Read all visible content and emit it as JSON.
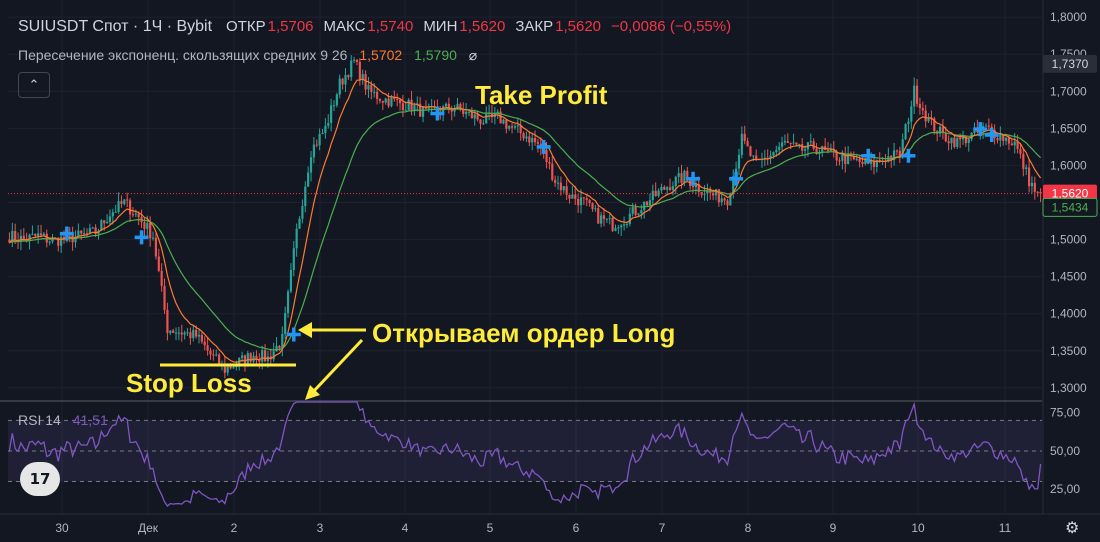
{
  "header": {
    "symbol": "SUIUSDT Спот · 1Ч · Bybit",
    "open_label": "ОТКР",
    "open": "1,5706",
    "high_label": "МАКС",
    "high": "1,5740",
    "low_label": "МИН",
    "low": "1,5620",
    "close_label": "ЗАКР",
    "close": "1,5620",
    "change": "−0,0086 (−0,55%)"
  },
  "indicator": {
    "name": "Пересечение экспоненц. скользящих средних 9 26",
    "ema_fast_value": "1,5702",
    "ema_slow_value": "1,5790",
    "eye_icon": "⌀"
  },
  "collapse_label": "⌃",
  "rsi": {
    "label": "RSI 14",
    "value": "41,51"
  },
  "logo_text": "17",
  "annotations": {
    "take_profit": "Take Profit",
    "open_long": "Открываем ордер Long",
    "stop_loss": "Stop Loss"
  },
  "colors": {
    "background": "#131722",
    "up": "#26a69a",
    "down": "#ef5350",
    "ema_fast": "#ff7a2f",
    "ema_slow": "#4caf50",
    "rsi": "#7e57c2",
    "annotation": "#ffeb3b",
    "cross": "#2196f3"
  },
  "chart_data": [
    {
      "type": "candlestick",
      "price_axis_ticks": [
        "1,8000",
        "1,7500",
        "1,7000",
        "1,6500",
        "1,6000",
        "1,5500",
        "1,5000",
        "1,4500",
        "1,4000",
        "1,3500",
        "1,3000"
      ],
      "price_axis_tick_values": [
        1.8,
        1.75,
        1.7,
        1.65,
        1.6,
        1.55,
        1.5,
        1.45,
        1.4,
        1.35,
        1.3
      ],
      "ylim": [
        1.285,
        1.815
      ],
      "x_axis_ticks": [
        "30",
        "Дек",
        "2",
        "3",
        "4",
        "5",
        "6",
        "7",
        "8",
        "9",
        "10",
        "11"
      ],
      "price_labels": [
        {
          "text": "1,7370",
          "value": 1.737,
          "style": "dark"
        },
        {
          "text": "1,5620",
          "value": 1.562,
          "style": "red"
        },
        {
          "text": "1,5434",
          "value": 1.5434,
          "style": "green"
        }
      ],
      "current_price": 1.562,
      "close_path": [
        [
          0,
          1.505
        ],
        [
          5,
          1.5
        ],
        [
          10,
          1.505
        ],
        [
          15,
          1.498
        ],
        [
          20,
          1.502
        ],
        [
          25,
          1.505
        ],
        [
          30,
          1.51
        ],
        [
          35,
          1.535
        ],
        [
          40,
          1.55
        ],
        [
          45,
          1.53
        ],
        [
          50,
          1.505
        ],
        [
          55,
          1.38
        ],
        [
          60,
          1.375
        ],
        [
          65,
          1.37
        ],
        [
          70,
          1.345
        ],
        [
          75,
          1.325
        ],
        [
          80,
          1.335
        ],
        [
          85,
          1.345
        ],
        [
          90,
          1.34
        ],
        [
          95,
          1.365
        ],
        [
          100,
          1.51
        ],
        [
          105,
          1.62
        ],
        [
          110,
          1.65
        ],
        [
          115,
          1.71
        ],
        [
          120,
          1.74
        ],
        [
          125,
          1.7
        ],
        [
          130,
          1.69
        ],
        [
          135,
          1.685
        ],
        [
          140,
          1.68
        ],
        [
          145,
          1.67
        ],
        [
          150,
          1.675
        ],
        [
          155,
          1.678
        ],
        [
          160,
          1.668
        ],
        [
          165,
          1.66
        ],
        [
          170,
          1.665
        ],
        [
          175,
          1.65
        ],
        [
          180,
          1.64
        ],
        [
          185,
          1.625
        ],
        [
          190,
          1.58
        ],
        [
          195,
          1.56
        ],
        [
          200,
          1.55
        ],
        [
          205,
          1.53
        ],
        [
          210,
          1.52
        ],
        [
          215,
          1.53
        ],
        [
          220,
          1.545
        ],
        [
          225,
          1.56
        ],
        [
          230,
          1.575
        ],
        [
          235,
          1.585
        ],
        [
          240,
          1.57
        ],
        [
          245,
          1.56
        ],
        [
          250,
          1.555
        ],
        [
          255,
          1.635
        ],
        [
          260,
          1.6
        ],
        [
          265,
          1.615
        ],
        [
          270,
          1.63
        ],
        [
          275,
          1.62
        ],
        [
          280,
          1.625
        ],
        [
          285,
          1.615
        ],
        [
          290,
          1.61
        ],
        [
          295,
          1.605
        ],
        [
          300,
          1.6
        ],
        [
          305,
          1.61
        ],
        [
          310,
          1.615
        ],
        [
          315,
          1.7
        ],
        [
          320,
          1.66
        ],
        [
          325,
          1.64
        ],
        [
          330,
          1.632
        ],
        [
          335,
          1.64
        ],
        [
          340,
          1.65
        ],
        [
          345,
          1.64
        ],
        [
          350,
          1.63
        ],
        [
          355,
          1.58
        ],
        [
          360,
          1.545
        ]
      ],
      "n_candles": 360,
      "ema_fast_period": 9,
      "ema_slow_period": 26,
      "cross_markers": [
        [
          20,
          1.508
        ],
        [
          46,
          1.503
        ],
        [
          99,
          1.372
        ],
        [
          149,
          1.67
        ],
        [
          186,
          1.625
        ],
        [
          238,
          1.582
        ],
        [
          253,
          1.582
        ],
        [
          299,
          1.613
        ],
        [
          313,
          1.613
        ],
        [
          338,
          1.649
        ],
        [
          342,
          1.641
        ]
      ]
    },
    {
      "type": "line",
      "name": "RSI 14",
      "levels": [
        70,
        50,
        30
      ],
      "y_ticks": [
        "75,00",
        "50,00",
        "25,00"
      ],
      "y_tick_values": [
        75,
        50,
        25
      ],
      "ylim": [
        14,
        82
      ],
      "last_value": 41.51
    }
  ]
}
